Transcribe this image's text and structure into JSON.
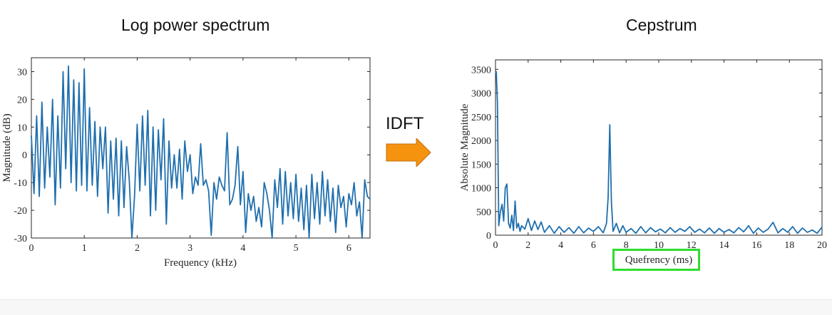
{
  "titles": {
    "left": "Log power spectrum",
    "right": "Cepstrum"
  },
  "arrow": {
    "label": "IDFT",
    "color": "#f5930f",
    "icon": "right-arrow-icon"
  },
  "highlight_color": "#2fdc2f",
  "line_color": "#1f6fae",
  "chart_data": [
    {
      "type": "line",
      "title": "",
      "xlabel": "Frequency (kHz)",
      "ylabel": "Magnitude (dB)",
      "xlim": [
        0,
        6.4
      ],
      "ylim": [
        -30,
        35
      ],
      "xticks": [
        0,
        1,
        2,
        3,
        4,
        5,
        6
      ],
      "yticks": [
        -30,
        -20,
        -10,
        0,
        10,
        20,
        30
      ],
      "grid": false,
      "series": [
        {
          "x": [
            0,
            0.05,
            0.1,
            0.15,
            0.2,
            0.25,
            0.3,
            0.35,
            0.4,
            0.45,
            0.5,
            0.55,
            0.6,
            0.65,
            0.7,
            0.75,
            0.8,
            0.85,
            0.9,
            0.95,
            1.0,
            1.05,
            1.1,
            1.15,
            1.2,
            1.25,
            1.3,
            1.35,
            1.4,
            1.45,
            1.5,
            1.55,
            1.6,
            1.65,
            1.7,
            1.75,
            1.8,
            1.85,
            1.9,
            1.95,
            2.0,
            2.05,
            2.1,
            2.15,
            2.2,
            2.25,
            2.3,
            2.35,
            2.4,
            2.45,
            2.5,
            2.55,
            2.6,
            2.65,
            2.7,
            2.75,
            2.8,
            2.85,
            2.9,
            2.95,
            3.0,
            3.05,
            3.1,
            3.15,
            3.2,
            3.25,
            3.3,
            3.35,
            3.4,
            3.45,
            3.5,
            3.55,
            3.6,
            3.65,
            3.7,
            3.75,
            3.8,
            3.85,
            3.9,
            3.95,
            4.0,
            4.05,
            4.1,
            4.15,
            4.2,
            4.25,
            4.3,
            4.35,
            4.4,
            4.45,
            4.5,
            4.55,
            4.6,
            4.65,
            4.7,
            4.75,
            4.8,
            4.85,
            4.9,
            4.95,
            5.0,
            5.05,
            5.1,
            5.15,
            5.2,
            5.25,
            5.3,
            5.35,
            5.4,
            5.45,
            5.5,
            5.55,
            5.6,
            5.65,
            5.7,
            5.75,
            5.8,
            5.85,
            5.9,
            5.95,
            6.0,
            6.05,
            6.1,
            6.15,
            6.2,
            6.25,
            6.3,
            6.35,
            6.4
          ],
          "y": [
            7,
            -14,
            14,
            -15,
            19,
            -12,
            10,
            -8,
            20,
            -18,
            14,
            -12,
            30,
            -5,
            32,
            -10,
            27,
            -13,
            26,
            -11,
            31,
            -13,
            17,
            -11,
            12,
            -15,
            10,
            -5,
            10,
            -21,
            5,
            -16,
            6,
            -22,
            5,
            -19,
            3,
            -9,
            -30,
            -15,
            11,
            -13,
            14,
            -11,
            16,
            -22,
            10,
            -20,
            9,
            -9,
            13,
            -25,
            5,
            -12,
            0,
            -12,
            2,
            -16,
            5,
            -6,
            0,
            -14,
            -8,
            -11,
            4,
            -11,
            -9,
            -13,
            -29,
            -10,
            -16,
            -8,
            -11,
            -13,
            8,
            -18,
            -16,
            -11,
            3,
            -18,
            -6,
            -28,
            -14,
            -20,
            -15,
            -24,
            -19,
            -26,
            -10,
            -14,
            -20,
            -30,
            -9,
            -19,
            -5,
            -25,
            -6,
            -22,
            -10,
            -23,
            -7,
            -24,
            -12,
            -27,
            -11,
            -30,
            -7,
            -23,
            -10,
            -25,
            -6,
            -22,
            -9,
            -24,
            -12,
            -28,
            -11,
            -19,
            -15,
            -26,
            -14,
            -18,
            -10,
            -22,
            -17,
            -30,
            -9,
            -15,
            -16
          ]
        }
      ]
    },
    {
      "type": "line",
      "title": "",
      "xlabel": "Quefrency (ms)",
      "ylabel": "Absolute Magnitude",
      "xlim": [
        0,
        20
      ],
      "ylim": [
        0,
        3700
      ],
      "xticks": [
        0,
        2,
        4,
        6,
        8,
        10,
        12,
        14,
        16,
        18,
        20
      ],
      "yticks": [
        0,
        500,
        1000,
        1500,
        2000,
        2500,
        3000,
        3500
      ],
      "grid": false,
      "series": [
        {
          "x": [
            0,
            0.05,
            0.12,
            0.2,
            0.3,
            0.4,
            0.5,
            0.6,
            0.7,
            0.8,
            0.9,
            1.0,
            1.1,
            1.2,
            1.3,
            1.4,
            1.5,
            1.6,
            1.8,
            2.0,
            2.2,
            2.4,
            2.6,
            2.8,
            3.0,
            3.3,
            3.6,
            3.9,
            4.2,
            4.5,
            4.8,
            5.1,
            5.4,
            5.7,
            6.0,
            6.3,
            6.6,
            6.8,
            6.9,
            7.0,
            7.1,
            7.2,
            7.4,
            7.6,
            7.8,
            8.0,
            8.3,
            8.6,
            8.9,
            9.2,
            9.5,
            9.8,
            10.1,
            10.4,
            10.7,
            11.0,
            11.3,
            11.6,
            11.9,
            12.2,
            12.5,
            12.8,
            13.1,
            13.4,
            13.7,
            14.0,
            14.3,
            14.6,
            14.9,
            15.2,
            15.5,
            15.8,
            16.1,
            16.4,
            16.7,
            17.0,
            17.3,
            17.6,
            17.9,
            18.2,
            18.5,
            18.8,
            19.1,
            19.4,
            19.7,
            20.0
          ],
          "y": [
            3400,
            3450,
            2800,
            200,
            500,
            650,
            300,
            1000,
            1080,
            250,
            150,
            420,
            100,
            720,
            150,
            250,
            80,
            200,
            130,
            350,
            100,
            300,
            120,
            280,
            60,
            200,
            40,
            180,
            60,
            160,
            40,
            180,
            50,
            150,
            80,
            180,
            50,
            250,
            800,
            2330,
            700,
            80,
            250,
            50,
            200,
            60,
            140,
            40,
            180,
            50,
            160,
            70,
            130,
            50,
            160,
            60,
            140,
            80,
            180,
            60,
            130,
            50,
            150,
            40,
            140,
            60,
            120,
            50,
            160,
            70,
            200,
            40,
            150,
            60,
            130,
            270,
            50,
            140,
            60,
            180,
            40,
            150,
            60,
            110,
            40,
            170
          ]
        }
      ]
    }
  ]
}
